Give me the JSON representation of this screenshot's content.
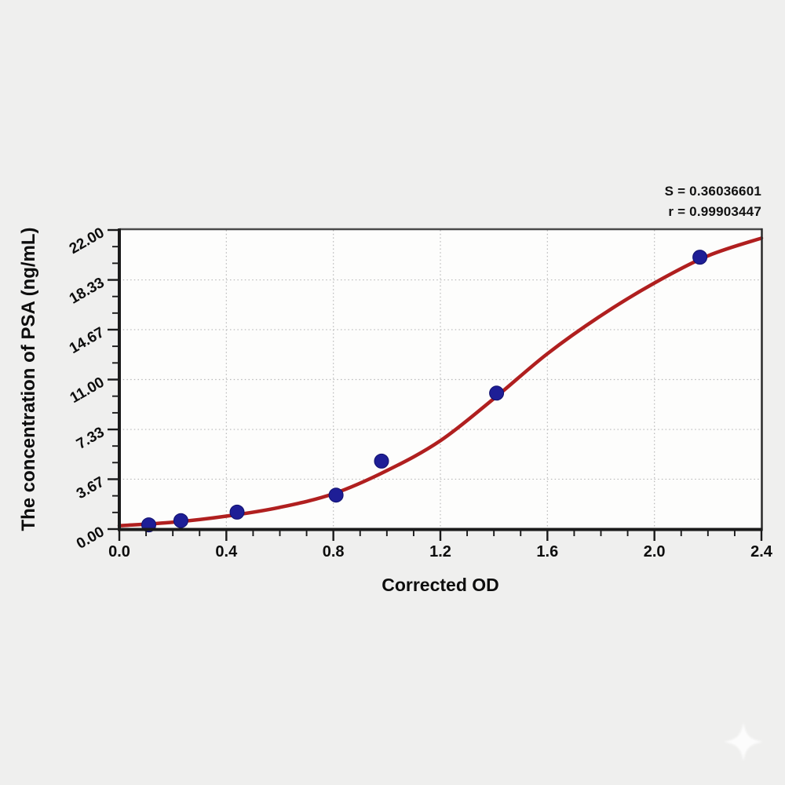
{
  "page": {
    "background_color": "#efefee",
    "plot_background_color": "#fdfdfc",
    "grid_color": "#b8b8b8",
    "axis_color": "#1a1a1a",
    "text_color": "#0d0d0d",
    "watermark_icon": "sparkle-star"
  },
  "chart_data": {
    "type": "scatter",
    "title": "",
    "xlabel": "Corrected OD",
    "ylabel": "The concentration of PSA (ng/mL)",
    "xlim": [
      0.0,
      2.4
    ],
    "ylim": [
      0.0,
      22.0
    ],
    "grid": "dotted-major",
    "legend": "none",
    "x_major_ticks": [
      0.0,
      0.4,
      0.8,
      1.2,
      1.6,
      2.0,
      2.4
    ],
    "x_tick_labels": [
      "0.0",
      "0.4",
      "0.8",
      "1.2",
      "1.6",
      "2.0",
      "2.4"
    ],
    "x_minor_step": 0.1,
    "y_major_ticks": [
      0.0,
      3.67,
      7.33,
      11.0,
      14.67,
      18.33,
      22.0
    ],
    "y_tick_labels": [
      "0.00",
      "3.67",
      "7.33",
      "11.00",
      "14.67",
      "18.33",
      "22.00"
    ],
    "y_minors_between_majors": 2,
    "series": [
      {
        "name": "standard-points",
        "type": "scatter",
        "color": "#1e1e96",
        "edge_color": "#10106e",
        "x": [
          0.11,
          0.23,
          0.44,
          0.81,
          0.98,
          1.41,
          2.17
        ],
        "y": [
          0.313,
          0.625,
          1.25,
          2.5,
          5.0,
          10.0,
          20.0
        ]
      },
      {
        "name": "4pl-fit-curve",
        "type": "line",
        "color": "#b01f1f",
        "x": [
          0.0,
          0.2,
          0.4,
          0.6,
          0.8,
          1.0,
          1.2,
          1.4,
          1.6,
          1.8,
          2.0,
          2.2,
          2.4
        ],
        "y": [
          0.25,
          0.5,
          0.95,
          1.6,
          2.6,
          4.3,
          6.5,
          9.6,
          12.9,
          15.7,
          18.1,
          20.1,
          21.4
        ]
      }
    ],
    "stats": {
      "s_line": "S = 0.36036601",
      "r_line": "r = 0.99903447"
    }
  }
}
